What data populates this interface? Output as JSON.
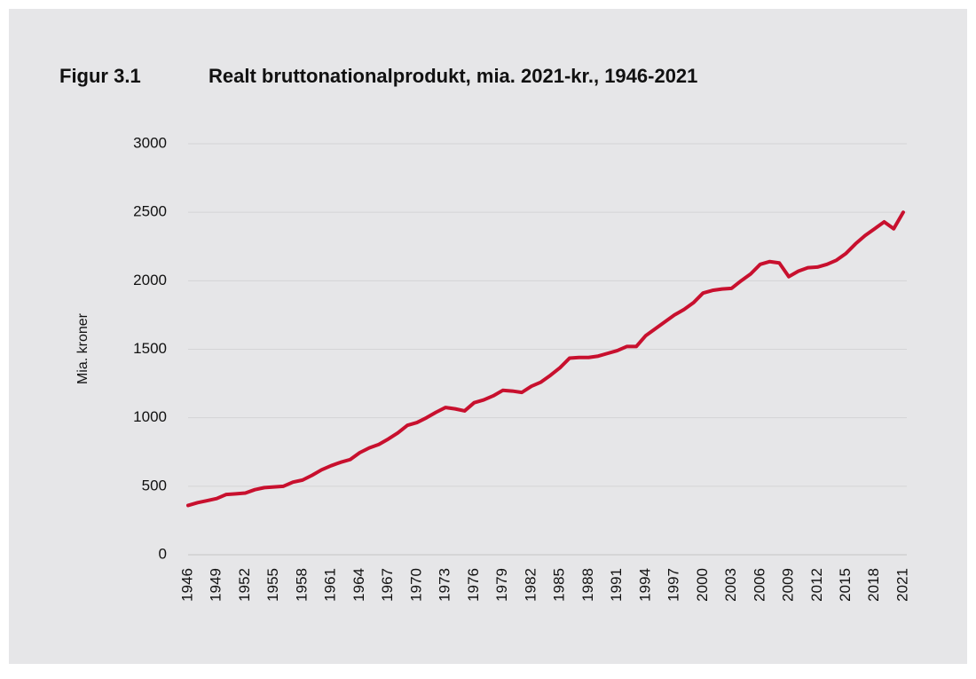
{
  "chart_data": {
    "type": "line",
    "figure_label": "Figur 3.1",
    "title": "Realt bruttonationalprodukt, mia. 2021-kr., 1946-2021",
    "ylabel": "Mia. kroner",
    "x": [
      1946,
      1947,
      1948,
      1949,
      1950,
      1951,
      1952,
      1953,
      1954,
      1955,
      1956,
      1957,
      1958,
      1959,
      1960,
      1961,
      1962,
      1963,
      1964,
      1965,
      1966,
      1967,
      1968,
      1969,
      1970,
      1971,
      1972,
      1973,
      1974,
      1975,
      1976,
      1977,
      1978,
      1979,
      1980,
      1981,
      1982,
      1983,
      1984,
      1985,
      1986,
      1987,
      1988,
      1989,
      1990,
      1991,
      1992,
      1993,
      1994,
      1995,
      1996,
      1997,
      1998,
      1999,
      2000,
      2001,
      2002,
      2003,
      2004,
      2005,
      2006,
      2007,
      2008,
      2009,
      2010,
      2011,
      2012,
      2013,
      2014,
      2015,
      2016,
      2017,
      2018,
      2019,
      2020,
      2021
    ],
    "values": [
      360,
      380,
      395,
      410,
      440,
      445,
      450,
      475,
      490,
      495,
      500,
      530,
      545,
      580,
      620,
      650,
      675,
      695,
      745,
      780,
      805,
      845,
      890,
      945,
      965,
      1000,
      1040,
      1075,
      1065,
      1050,
      1110,
      1130,
      1160,
      1200,
      1195,
      1185,
      1230,
      1260,
      1310,
      1365,
      1435,
      1440,
      1440,
      1450,
      1470,
      1490,
      1520,
      1520,
      1600,
      1650,
      1700,
      1750,
      1790,
      1840,
      1910,
      1930,
      1940,
      1945,
      2000,
      2050,
      2120,
      2140,
      2130,
      2030,
      2070,
      2095,
      2100,
      2120,
      2150,
      2200,
      2270,
      2330,
      2380,
      2430,
      2380,
      2500
    ],
    "color": "#c8102e",
    "xlim": [
      1946,
      2021
    ],
    "xticks": [
      1946,
      1949,
      1952,
      1955,
      1958,
      1961,
      1964,
      1967,
      1970,
      1973,
      1976,
      1979,
      1982,
      1985,
      1988,
      1991,
      1994,
      1997,
      2000,
      2003,
      2006,
      2009,
      2012,
      2015,
      2018,
      2021
    ],
    "ylim": [
      0,
      3000
    ],
    "yticks": [
      0,
      500,
      1000,
      1500,
      2000,
      2500,
      3000
    ],
    "grid": true
  }
}
